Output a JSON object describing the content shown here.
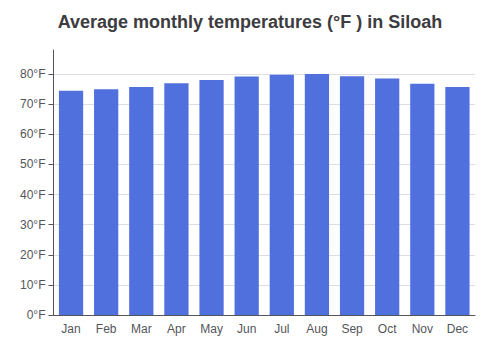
{
  "chart_data": {
    "type": "bar",
    "title": "Average monthly temperatures (°F ) in Siloah",
    "categories": [
      "Jan",
      "Feb",
      "Mar",
      "Apr",
      "May",
      "Jun",
      "Jul",
      "Aug",
      "Sep",
      "Oct",
      "Nov",
      "Dec"
    ],
    "values": [
      74.5,
      75.0,
      75.7,
      77.0,
      78.0,
      79.2,
      79.8,
      80.0,
      79.3,
      78.5,
      76.8,
      75.7
    ],
    "ylim": [
      0,
      88
    ],
    "yticks": [
      {
        "value": 0,
        "label": "0°F"
      },
      {
        "value": 10,
        "label": "10°F"
      },
      {
        "value": 20,
        "label": "20°F"
      },
      {
        "value": 30,
        "label": "30°F"
      },
      {
        "value": 40,
        "label": "40°F"
      },
      {
        "value": 50,
        "label": "50°F"
      },
      {
        "value": 60,
        "label": "60°F"
      },
      {
        "value": 70,
        "label": "70°F"
      },
      {
        "value": 80,
        "label": "80°F"
      }
    ],
    "grid": true
  }
}
